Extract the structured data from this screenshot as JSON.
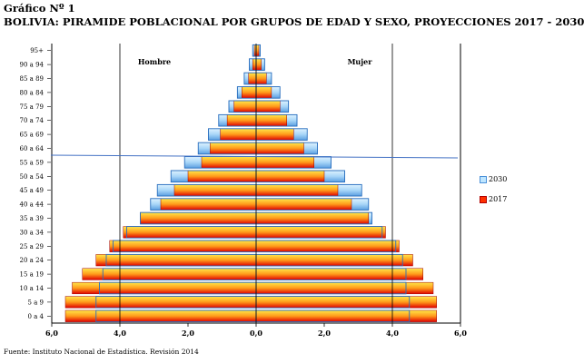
{
  "title_line1": "Gráfico Nº 1",
  "title_line2": "BOLIVIA: PIRAMIDE POBLACIONAL POR GRUPOS DE EDAD Y SEXO, PROYECCIONES 2017 - 2030",
  "source": "Fuente: Instituto Nacional de Estadística. Revisión 2014",
  "chart_data": {
    "type": "bar",
    "orientation": "horizontal",
    "categories": [
      "0 a 4",
      "5 a 9",
      "10 a 14",
      "15 a 19",
      "20 a 24",
      "25 a 29",
      "30 a 34",
      "35 a 39",
      "40 a 44",
      "45 a 49",
      "50 a 54",
      "55 a 59",
      "60 a 64",
      "65 a 69",
      "70 a 74",
      "75 a 79",
      "80 a 84",
      "85 a 89",
      "90 a 94",
      "95+"
    ],
    "side_labels": {
      "left": "Hombre",
      "right": "Mujer"
    },
    "series": [
      {
        "name": "2030",
        "hombre": [
          4.7,
          4.7,
          4.6,
          4.5,
          4.4,
          4.2,
          3.8,
          3.4,
          3.1,
          2.9,
          2.5,
          2.1,
          1.7,
          1.4,
          1.1,
          0.8,
          0.55,
          0.35,
          0.2,
          0.1
        ],
        "mujer": [
          4.5,
          4.5,
          4.4,
          4.4,
          4.3,
          4.1,
          3.7,
          3.4,
          3.3,
          3.1,
          2.6,
          2.2,
          1.8,
          1.5,
          1.2,
          0.95,
          0.7,
          0.45,
          0.25,
          0.12
        ]
      },
      {
        "name": "2017",
        "hombre": [
          5.6,
          5.6,
          5.4,
          5.1,
          4.7,
          4.3,
          3.9,
          3.4,
          2.8,
          2.4,
          2.0,
          1.6,
          1.35,
          1.05,
          0.85,
          0.65,
          0.42,
          0.22,
          0.1,
          0.05
        ],
        "mujer": [
          5.3,
          5.3,
          5.2,
          4.9,
          4.6,
          4.2,
          3.8,
          3.3,
          2.8,
          2.4,
          2.0,
          1.7,
          1.4,
          1.1,
          0.9,
          0.7,
          0.45,
          0.3,
          0.15,
          0.08
        ]
      }
    ],
    "x_ticks": [
      "6,0",
      "4,0",
      "2,0",
      "0,0",
      "2,0",
      "4,0",
      "6,0"
    ],
    "xlim": [
      -6,
      6
    ],
    "legend_position": "right",
    "colors": {
      "2030_light": "#bfe6ff",
      "2030_dark": "#4a90d9",
      "2017_light": "#ffe14d",
      "2017_dark": "#e10000",
      "grid": "#000000",
      "divider": "#4472c4"
    }
  }
}
